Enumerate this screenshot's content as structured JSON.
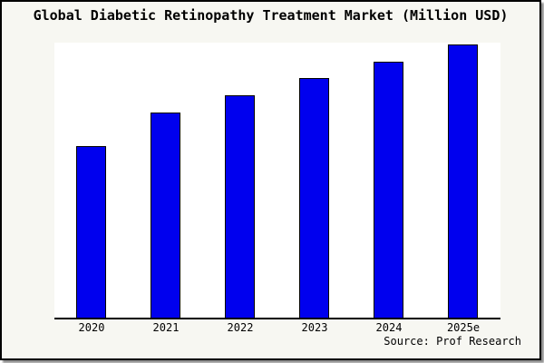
{
  "window": {
    "background_color": "#f7f7f2",
    "border_color": "#000000",
    "shadow_color": "#8f8f8f"
  },
  "header": {
    "title": "Global Diabetic Retinopathy Treatment Market (Million USD)"
  },
  "footer": {
    "source_label": "Source: Prof Research"
  },
  "chart_data": {
    "type": "bar",
    "title": "Global Diabetic Retinopathy Treatment Market (Million USD)",
    "categories": [
      "2020",
      "2021",
      "2022",
      "2023",
      "2024",
      "2025e"
    ],
    "values": [
      62.0,
      74.3,
      80.5,
      86.8,
      92.7,
      99.0
    ],
    "value_units": "percent of plot height (no y-axis scale shown)",
    "xlabel": "",
    "ylabel": "",
    "ylim": [
      0,
      100
    ],
    "grid": false,
    "legend": false,
    "bar_color": "#0000ee",
    "bar_border_color": "#000000",
    "plot_background": "#ffffff",
    "annotations": [
      "Source: Prof Research"
    ]
  }
}
